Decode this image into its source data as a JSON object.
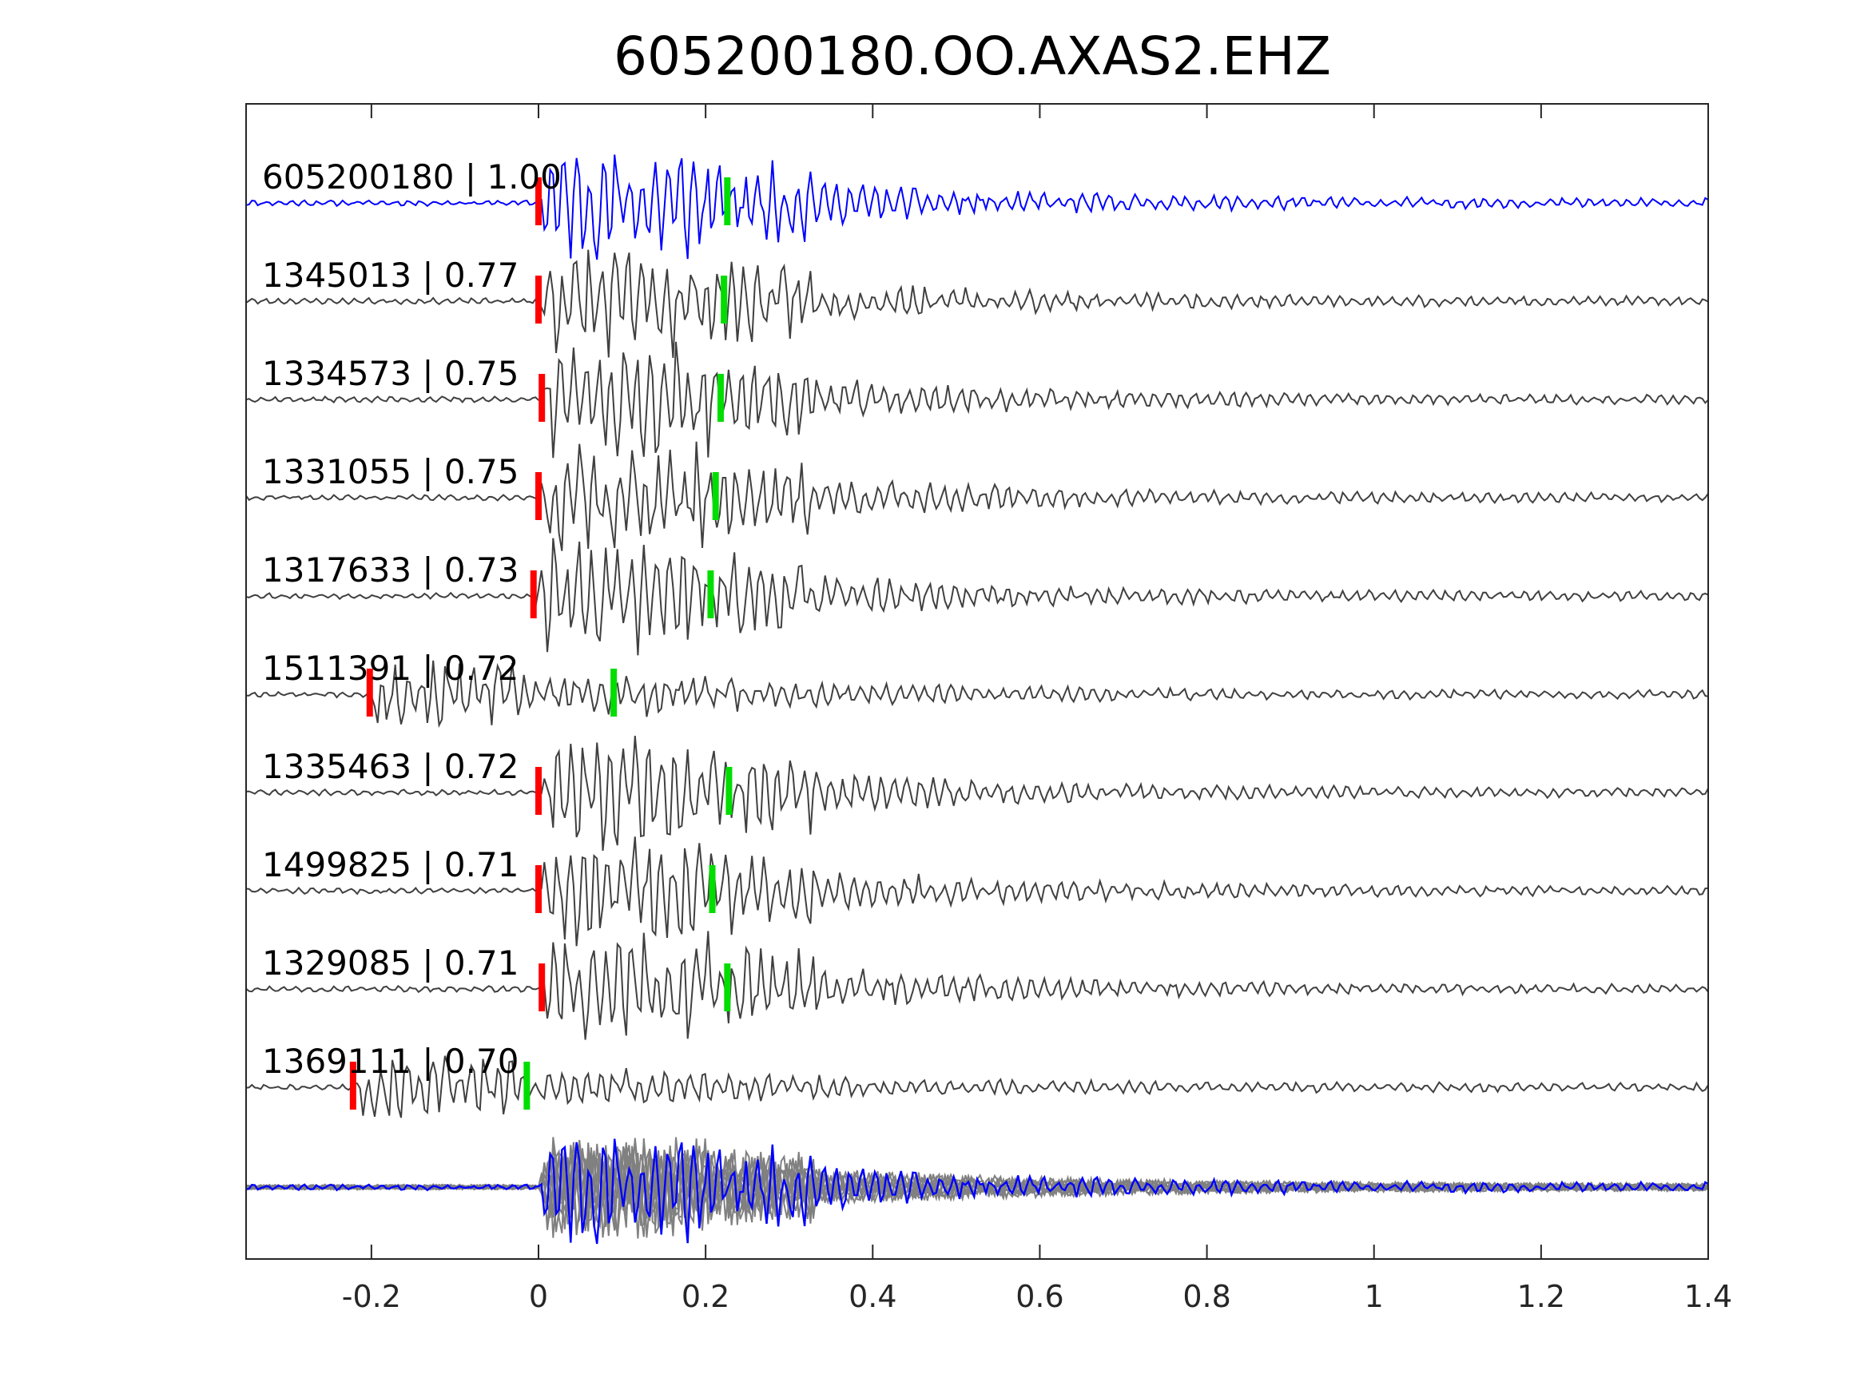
{
  "chart_data": {
    "type": "line",
    "title": "605200180.OO.AXAS2.EHZ",
    "xlabel": "",
    "ylabel": "",
    "xlim": [
      -0.35,
      1.4
    ],
    "x_ticks": [
      -0.2,
      0,
      0.2,
      0.4,
      0.6,
      0.8,
      1,
      1.2,
      1.4
    ],
    "x_tick_labels": [
      "-0.2",
      "0",
      "0.2",
      "0.4",
      "0.6",
      "0.8",
      "1",
      "1.2",
      "1.4"
    ],
    "grid": false,
    "colors": {
      "reference": "#0000ff",
      "trace": "#404040",
      "stack": "#808080",
      "p_pick": "#ff0000",
      "s_pick": "#00dd00",
      "axes": "#262626"
    },
    "traces": [
      {
        "event_id": "605200180",
        "corr": "1.00",
        "label": "605200180 | 1.00",
        "p_pick": 0.0,
        "s_pick": 0.226,
        "onset": 0.0,
        "seed": 11,
        "reference": true
      },
      {
        "event_id": "1345013",
        "corr": "0.77",
        "label": "1345013 | 0.77",
        "p_pick": 0.0,
        "s_pick": 0.222,
        "onset": 0.0,
        "seed": 23
      },
      {
        "event_id": "1334573",
        "corr": "0.75",
        "label": "1334573 | 0.75",
        "p_pick": 0.004,
        "s_pick": 0.218,
        "onset": 0.004,
        "seed": 37
      },
      {
        "event_id": "1331055",
        "corr": "0.75",
        "label": "1331055 | 0.75",
        "p_pick": 0.0,
        "s_pick": 0.212,
        "onset": 0.0,
        "seed": 41
      },
      {
        "event_id": "1317633",
        "corr": "0.73",
        "label": "1317633 | 0.73",
        "p_pick": -0.006,
        "s_pick": 0.206,
        "onset": -0.006,
        "seed": 53
      },
      {
        "event_id": "1511391",
        "corr": "0.72",
        "label": "1511391 | 0.72",
        "p_pick": -0.202,
        "s_pick": 0.09,
        "onset": -0.202,
        "seed": 67,
        "weak": true
      },
      {
        "event_id": "1335463",
        "corr": "0.72",
        "label": "1335463 | 0.72",
        "p_pick": 0.0,
        "s_pick": 0.228,
        "onset": 0.0,
        "seed": 71
      },
      {
        "event_id": "1499825",
        "corr": "0.71",
        "label": "1499825 | 0.71",
        "p_pick": 0.0,
        "s_pick": 0.208,
        "onset": 0.0,
        "seed": 83
      },
      {
        "event_id": "1329085",
        "corr": "0.71",
        "label": "1329085 | 0.71",
        "p_pick": 0.004,
        "s_pick": 0.226,
        "onset": 0.004,
        "seed": 97
      },
      {
        "event_id": "1369111",
        "corr": "0.70",
        "label": "1369111 | 0.70",
        "p_pick": -0.222,
        "s_pick": -0.014,
        "onset": -0.222,
        "seed": 101,
        "weak": true
      }
    ],
    "stack": {
      "name": "",
      "overlay_count": 9
    }
  }
}
